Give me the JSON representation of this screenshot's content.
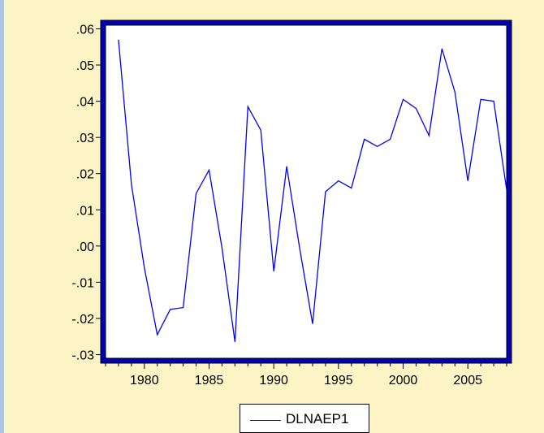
{
  "chart_data": {
    "type": "line",
    "title": "",
    "xlabel": "",
    "ylabel": "",
    "xlim": [
      1977,
      2008
    ],
    "ylim": [
      -0.031,
      0.061
    ],
    "grid": false,
    "legend_position": "bottom-center",
    "x_tick_values": [
      1980,
      1985,
      1990,
      1995,
      2000,
      2005
    ],
    "x_tick_labels": [
      "1980",
      "1985",
      "1990",
      "1995",
      "2000",
      "2005"
    ],
    "y_tick_values": [
      0.06,
      0.05,
      0.04,
      0.03,
      0.02,
      0.01,
      0.0,
      -0.01,
      -0.02,
      -0.03
    ],
    "y_tick_labels": [
      ".06",
      ".05",
      ".04",
      ".03",
      ".02",
      ".01",
      ".00",
      "-.01",
      "-.02",
      "-.03"
    ],
    "series": [
      {
        "name": "DLNAEP1",
        "color": "#0000ff",
        "x": [
          1978,
          1979,
          1980,
          1981,
          1982,
          1983,
          1984,
          1985,
          1986,
          1987,
          1988,
          1989,
          1990,
          1991,
          1992,
          1993,
          1994,
          1995,
          1996,
          1997,
          1998,
          1999,
          2000,
          2001,
          2002,
          2003,
          2004,
          2005,
          2006,
          2007,
          2008
        ],
        "y": [
          0.057,
          0.017,
          -0.006,
          -0.0245,
          -0.0175,
          -0.017,
          0.0145,
          0.021,
          -0.0005,
          -0.0265,
          0.0385,
          0.032,
          -0.007,
          0.022,
          -0.0005,
          -0.0215,
          0.015,
          0.018,
          0.016,
          0.0295,
          0.0275,
          0.0295,
          0.0405,
          0.038,
          0.0305,
          0.0545,
          0.0425,
          0.018,
          0.0405,
          0.04,
          0.0155
        ]
      }
    ]
  },
  "legend": {
    "label": "DLNAEP1"
  }
}
